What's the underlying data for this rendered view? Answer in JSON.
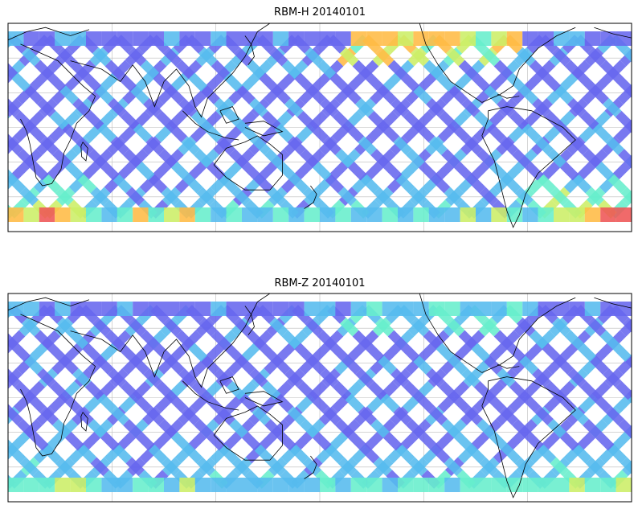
{
  "panels": [
    {
      "title": "RBM-H 20140101",
      "south_hot_left": 0.85,
      "south_hot_right": 0.95,
      "north_hot": 0.7
    },
    {
      "title": "RBM-Z 20140101",
      "south_hot_left": 0.45,
      "south_hot_right": 0.5,
      "north_hot": 0.35
    }
  ],
  "colors": {
    "swath_low": "#6666ee",
    "swath_mid": "#55bbee",
    "swath_high_1": "#66eecc",
    "swath_high_2": "#ccee66",
    "swath_high_3": "#ffbb44",
    "swath_max": "#ee5555",
    "coastline": "#000000",
    "gridline": "#bbbbbb",
    "frame": "#000000"
  }
}
